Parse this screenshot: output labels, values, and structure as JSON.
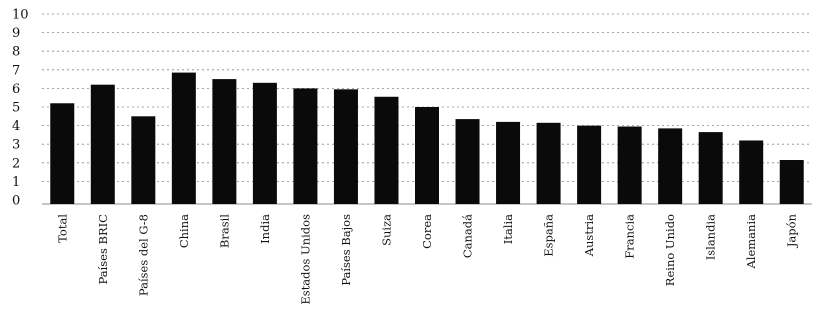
{
  "chart_data": {
    "type": "bar",
    "title": "",
    "xlabel": "",
    "ylabel": "",
    "ylim": [
      0,
      10
    ],
    "yticks": [
      0,
      1,
      2,
      3,
      4,
      5,
      6,
      7,
      8,
      9,
      10
    ],
    "grid": true,
    "bar_color": "#0a0a0a",
    "categories": [
      "Total",
      "Países BRIC",
      "Países del G-8",
      "China",
      "Brasil",
      "India",
      "Estados Unidos",
      "Países Bajos",
      "Suiza",
      "Corea",
      "Canadá",
      "Italia",
      "España",
      "Austria",
      "Francia",
      "Reino Unido",
      "Islandia",
      "Alemania",
      "Japón"
    ],
    "values": [
      5.2,
      6.2,
      4.5,
      6.85,
      6.5,
      6.3,
      6.0,
      5.95,
      5.55,
      5.0,
      4.35,
      4.2,
      4.15,
      4.0,
      3.95,
      3.85,
      3.65,
      3.2,
      2.15
    ]
  }
}
